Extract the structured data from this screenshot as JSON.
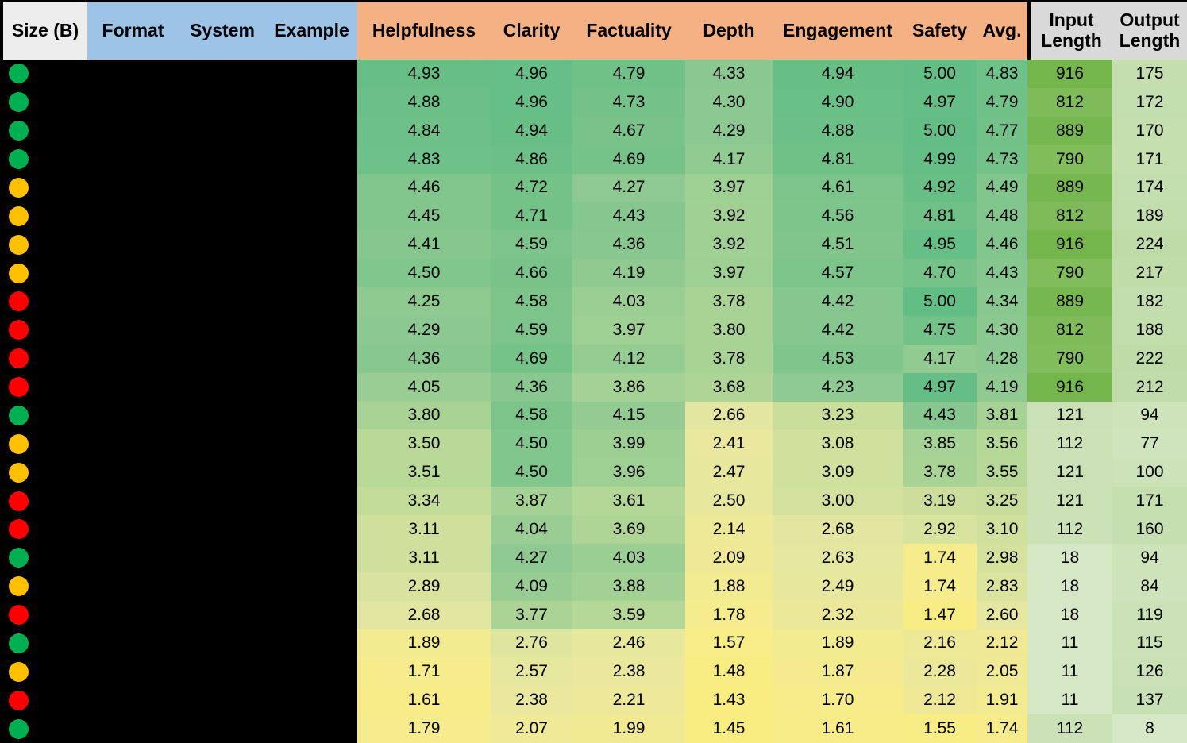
{
  "header": {
    "size_label": "Size (B)",
    "meta_columns": [
      "Format",
      "System",
      "Example"
    ],
    "score_columns": [
      "Helpfulness",
      "Clarity",
      "Factuality",
      "Depth",
      "Engagement",
      "Safety",
      "Avg."
    ],
    "length_columns": [
      "Input Length",
      "Output Length"
    ]
  },
  "colors": {
    "header_size_bg": "#EDEDED",
    "header_meta_bg": "#9DC3E6",
    "header_score_bg": "#F4B183",
    "header_length_bg": "#D9D9D9",
    "dot_green": "#00B050",
    "dot_yellow": "#FFC000",
    "dot_red": "#FF0000",
    "redacted_bg": "#000000",
    "text": "#000000"
  },
  "chart_data": {
    "type": "heatmap",
    "title": "",
    "columns": [
      "Size (B)",
      "Format",
      "System",
      "Example",
      "Helpfulness",
      "Clarity",
      "Factuality",
      "Depth",
      "Engagement",
      "Safety",
      "Avg.",
      "Input Length",
      "Output Length"
    ],
    "score_column_keys": [
      "helpfulness",
      "clarity",
      "factuality",
      "depth",
      "engagement",
      "safety",
      "avg"
    ],
    "rows": [
      {
        "size_dot": "green",
        "scores": [
          4.93,
          4.96,
          4.79,
          4.33,
          4.94,
          5.0,
          4.83
        ],
        "input_length": 916,
        "output_length": 175
      },
      {
        "size_dot": "green",
        "scores": [
          4.88,
          4.96,
          4.73,
          4.3,
          4.9,
          4.97,
          4.79
        ],
        "input_length": 812,
        "output_length": 172
      },
      {
        "size_dot": "green",
        "scores": [
          4.84,
          4.94,
          4.67,
          4.29,
          4.88,
          5.0,
          4.77
        ],
        "input_length": 889,
        "output_length": 170
      },
      {
        "size_dot": "green",
        "scores": [
          4.83,
          4.86,
          4.69,
          4.17,
          4.81,
          4.99,
          4.73
        ],
        "input_length": 790,
        "output_length": 171
      },
      {
        "size_dot": "yellow",
        "scores": [
          4.46,
          4.72,
          4.27,
          3.97,
          4.61,
          4.92,
          4.49
        ],
        "input_length": 889,
        "output_length": 174
      },
      {
        "size_dot": "yellow",
        "scores": [
          4.45,
          4.71,
          4.43,
          3.92,
          4.56,
          4.81,
          4.48
        ],
        "input_length": 812,
        "output_length": 189
      },
      {
        "size_dot": "yellow",
        "scores": [
          4.41,
          4.59,
          4.36,
          3.92,
          4.51,
          4.95,
          4.46
        ],
        "input_length": 916,
        "output_length": 224
      },
      {
        "size_dot": "yellow",
        "scores": [
          4.5,
          4.66,
          4.19,
          3.97,
          4.57,
          4.7,
          4.43
        ],
        "input_length": 790,
        "output_length": 217
      },
      {
        "size_dot": "red",
        "scores": [
          4.25,
          4.58,
          4.03,
          3.78,
          4.42,
          5.0,
          4.34
        ],
        "input_length": 889,
        "output_length": 182
      },
      {
        "size_dot": "red",
        "scores": [
          4.29,
          4.59,
          3.97,
          3.8,
          4.42,
          4.75,
          4.3
        ],
        "input_length": 812,
        "output_length": 188
      },
      {
        "size_dot": "red",
        "scores": [
          4.36,
          4.69,
          4.12,
          3.78,
          4.53,
          4.17,
          4.28
        ],
        "input_length": 790,
        "output_length": 222
      },
      {
        "size_dot": "red",
        "scores": [
          4.05,
          4.36,
          3.86,
          3.68,
          4.23,
          4.97,
          4.19
        ],
        "input_length": 916,
        "output_length": 212
      },
      {
        "size_dot": "green",
        "scores": [
          3.8,
          4.58,
          4.15,
          2.66,
          3.23,
          4.43,
          3.81
        ],
        "input_length": 121,
        "output_length": 94
      },
      {
        "size_dot": "yellow",
        "scores": [
          3.5,
          4.5,
          3.99,
          2.41,
          3.08,
          3.85,
          3.56
        ],
        "input_length": 112,
        "output_length": 77
      },
      {
        "size_dot": "yellow",
        "scores": [
          3.51,
          4.5,
          3.96,
          2.47,
          3.09,
          3.78,
          3.55
        ],
        "input_length": 121,
        "output_length": 100
      },
      {
        "size_dot": "red",
        "scores": [
          3.34,
          3.87,
          3.61,
          2.5,
          3.0,
          3.19,
          3.25
        ],
        "input_length": 121,
        "output_length": 171
      },
      {
        "size_dot": "red",
        "scores": [
          3.11,
          4.04,
          3.69,
          2.14,
          2.68,
          2.92,
          3.1
        ],
        "input_length": 112,
        "output_length": 160
      },
      {
        "size_dot": "green",
        "scores": [
          3.11,
          4.27,
          4.03,
          2.09,
          2.63,
          1.74,
          2.98
        ],
        "input_length": 18,
        "output_length": 94
      },
      {
        "size_dot": "yellow",
        "scores": [
          2.89,
          4.09,
          3.88,
          1.88,
          2.49,
          1.74,
          2.83
        ],
        "input_length": 18,
        "output_length": 84
      },
      {
        "size_dot": "red",
        "scores": [
          2.68,
          3.77,
          3.59,
          1.78,
          2.32,
          1.47,
          2.6
        ],
        "input_length": 18,
        "output_length": 119
      },
      {
        "size_dot": "green",
        "scores": [
          1.89,
          2.76,
          2.46,
          1.57,
          1.89,
          2.16,
          2.12
        ],
        "input_length": 11,
        "output_length": 115
      },
      {
        "size_dot": "yellow",
        "scores": [
          1.71,
          2.57,
          2.38,
          1.48,
          1.87,
          2.28,
          2.05
        ],
        "input_length": 11,
        "output_length": 126
      },
      {
        "size_dot": "red",
        "scores": [
          1.61,
          2.38,
          2.21,
          1.43,
          1.7,
          2.12,
          1.91
        ],
        "input_length": 11,
        "output_length": 137
      },
      {
        "size_dot": "green",
        "scores": [
          1.79,
          2.07,
          1.99,
          1.45,
          1.61,
          1.55,
          1.74
        ],
        "input_length": 112,
        "output_length": 8
      }
    ],
    "score_scale": {
      "min": 1.43,
      "max": 5.0,
      "stops": [
        [
          1.4,
          "#F9ED80"
        ],
        [
          1.75,
          "#F6EC8C"
        ],
        [
          2.1,
          "#EFE996"
        ],
        [
          2.6,
          "#E5E7A0"
        ],
        [
          3.1,
          "#D0E09D"
        ],
        [
          3.6,
          "#B4D797"
        ],
        [
          4.2,
          "#90CA91"
        ],
        [
          4.6,
          "#7CC48B"
        ],
        [
          5.0,
          "#63BE85"
        ]
      ]
    },
    "length_scale": {
      "min": 0,
      "max": 916,
      "low_color": "#D7E8C6",
      "high_color": "#74B64B"
    },
    "layout_hints": {
      "grid": false,
      "redacted_columns": [
        "Format",
        "System",
        "Example"
      ],
      "dot_legend_order": [
        "green",
        "yellow",
        "red"
      ]
    }
  }
}
